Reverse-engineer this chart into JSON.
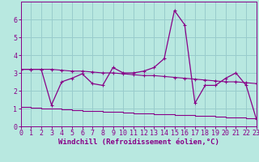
{
  "x_ticks": [
    0,
    1,
    2,
    3,
    4,
    5,
    6,
    7,
    8,
    9,
    10,
    11,
    12,
    13,
    14,
    15,
    16,
    17,
    18,
    19,
    20,
    21,
    22,
    23
  ],
  "line_flat": {
    "x": [
      0,
      1,
      2,
      3,
      4,
      5,
      6,
      7,
      8,
      9,
      10,
      11,
      12,
      13,
      14,
      15,
      16,
      17,
      18,
      19,
      20,
      21,
      22,
      23
    ],
    "y": [
      3.2,
      3.2,
      3.2,
      3.2,
      3.15,
      3.1,
      3.1,
      3.05,
      3.0,
      3.0,
      2.95,
      2.9,
      2.85,
      2.85,
      2.8,
      2.75,
      2.7,
      2.65,
      2.6,
      2.55,
      2.5,
      2.5,
      2.45,
      2.4
    ]
  },
  "line_low": {
    "x": [
      0,
      1,
      2,
      3,
      4,
      5,
      6,
      7,
      8,
      9,
      10,
      11,
      12,
      13,
      14,
      15,
      16,
      17,
      18,
      19,
      20,
      21,
      22,
      23
    ],
    "y": [
      1.1,
      1.05,
      1.0,
      1.0,
      0.95,
      0.9,
      0.88,
      0.85,
      0.82,
      0.8,
      0.78,
      0.75,
      0.72,
      0.7,
      0.68,
      0.65,
      0.62,
      0.6,
      0.58,
      0.55,
      0.52,
      0.5,
      0.47,
      0.45
    ]
  },
  "line_main": {
    "x": [
      0,
      1,
      2,
      3,
      4,
      5,
      6,
      7,
      8,
      9,
      10,
      11,
      12,
      13,
      14,
      15,
      16,
      17,
      18,
      19,
      20,
      21,
      22,
      23
    ],
    "y": [
      3.2,
      3.2,
      3.2,
      1.2,
      2.5,
      2.7,
      2.95,
      2.4,
      2.3,
      3.3,
      3.0,
      3.0,
      3.1,
      3.3,
      3.8,
      6.5,
      5.7,
      1.3,
      2.3,
      2.3,
      2.7,
      3.0,
      2.3,
      0.4
    ]
  },
  "background_color": "#b8e8e0",
  "grid_color": "#99cccc",
  "ylim": [
    0,
    7.0
  ],
  "xlim": [
    0,
    23
  ],
  "xlabel": "Windchill (Refroidissement éolien,°C)",
  "xlabel_fontsize": 6.5,
  "tick_fontsize": 6,
  "ylabel_ticks": [
    0,
    1,
    2,
    3,
    4,
    5,
    6
  ],
  "line_color": "#880088"
}
